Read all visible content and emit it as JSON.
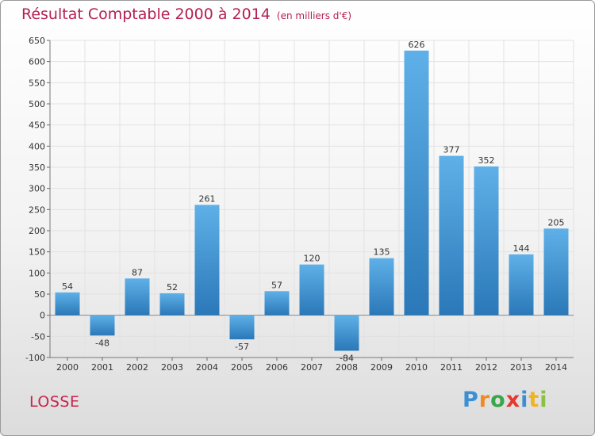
{
  "chart_data": {
    "type": "bar",
    "title": "Résultat Comptable 2000 à 2014",
    "subtitle": "(en milliers d'€)",
    "categories": [
      "2000",
      "2001",
      "2002",
      "2003",
      "2004",
      "2005",
      "2006",
      "2007",
      "2008",
      "2009",
      "2010",
      "2011",
      "2012",
      "2013",
      "2014"
    ],
    "values": [
      54,
      -48,
      87,
      52,
      261,
      -57,
      57,
      120,
      -84,
      135,
      626,
      377,
      352,
      144,
      205
    ],
    "ylim": [
      -100,
      650
    ],
    "yticks": [
      -100,
      -50,
      0,
      50,
      100,
      150,
      200,
      250,
      300,
      350,
      400,
      450,
      500,
      550,
      600,
      650
    ],
    "grid": true,
    "legend": "none",
    "xlabel": "",
    "ylabel": ""
  },
  "footer": {
    "commune": "LOSSE",
    "logo_letters": [
      "P",
      "r",
      "o",
      "x",
      "i",
      "t",
      "i"
    ]
  },
  "colors": {
    "bar_top": "#5fb0e8",
    "bar_bottom": "#2a78b8",
    "title": "#b5204f",
    "grid": "#e2e2e2",
    "logo": [
      "#3b8fd4",
      "#f08a24",
      "#3aa64a",
      "#e53a2e",
      "#3b8fd4",
      "#f0b323",
      "#8ac23f"
    ]
  }
}
